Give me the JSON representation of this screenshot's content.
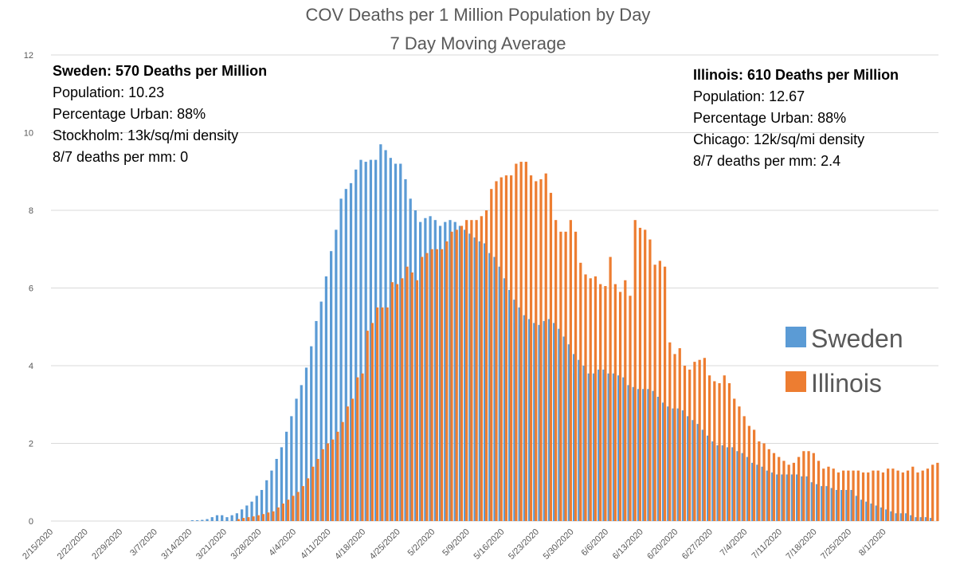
{
  "chart_data": {
    "type": "bar",
    "title": [
      "COV Deaths per 1 Million Population by Day",
      "7 Day Moving Average"
    ],
    "xlabel": "",
    "ylabel": "",
    "ylim": [
      0,
      12
    ],
    "yticks": [
      "0",
      "2",
      "4",
      "6",
      "8",
      "10",
      "12"
    ],
    "grid": true,
    "legend_position": "right",
    "start_date": "2/15/2020",
    "x_tick_labels": [
      "2/15/2020",
      "2/22/2020",
      "2/29/2020",
      "3/7/2020",
      "3/14/2020",
      "3/21/2020",
      "3/28/2020",
      "4/4/2020",
      "4/11/2020",
      "4/18/2020",
      "4/25/2020",
      "5/2/2020",
      "5/9/2020",
      "5/16/2020",
      "5/23/2020",
      "5/30/2020",
      "6/6/2020",
      "6/13/2020",
      "6/20/2020",
      "6/27/2020",
      "7/4/2020",
      "7/11/2020",
      "7/18/2020",
      "7/25/2020",
      "8/1/2020"
    ],
    "series": [
      {
        "name": "Sweden",
        "color": "#5b9bd5",
        "values": [
          0,
          0,
          0,
          0,
          0,
          0,
          0,
          0,
          0,
          0,
          0,
          0,
          0,
          0,
          0,
          0,
          0,
          0,
          0,
          0,
          0,
          0,
          0,
          0,
          0,
          0,
          0,
          0,
          0.02,
          0.02,
          0.03,
          0.05,
          0.1,
          0.15,
          0.15,
          0.1,
          0.15,
          0.2,
          0.3,
          0.4,
          0.5,
          0.65,
          0.8,
          1.05,
          1.3,
          1.6,
          1.9,
          2.3,
          2.7,
          3.15,
          3.5,
          3.95,
          4.5,
          5.15,
          5.65,
          6.3,
          6.95,
          7.5,
          8.3,
          8.55,
          8.7,
          9.05,
          9.3,
          9.25,
          9.3,
          9.3,
          9.7,
          9.55,
          9.35,
          9.2,
          9.2,
          8.8,
          8.3,
          8.0,
          7.7,
          7.8,
          7.85,
          7.75,
          7.6,
          7.7,
          7.75,
          7.7,
          7.6,
          7.5,
          7.4,
          7.3,
          7.2,
          7.15,
          6.9,
          6.8,
          6.55,
          6.25,
          5.95,
          5.7,
          5.5,
          5.3,
          5.2,
          5.1,
          5.05,
          5.15,
          5.2,
          5.1,
          4.95,
          4.75,
          4.55,
          4.3,
          4.15,
          4.0,
          3.8,
          3.8,
          3.9,
          3.9,
          3.8,
          3.8,
          3.75,
          3.7,
          3.5,
          3.45,
          3.4,
          3.4,
          3.4,
          3.35,
          3.2,
          3.05,
          2.95,
          2.9,
          2.9,
          2.85,
          2.7,
          2.6,
          2.5,
          2.35,
          2.2,
          2.05,
          1.95,
          1.95,
          1.9,
          1.9,
          1.8,
          1.75,
          1.65,
          1.5,
          1.45,
          1.4,
          1.3,
          1.25,
          1.2,
          1.2,
          1.2,
          1.2,
          1.2,
          1.15,
          1.15,
          1.0,
          0.95,
          0.9,
          0.9,
          0.85,
          0.8,
          0.8,
          0.8,
          0.8,
          0.65,
          0.55,
          0.5,
          0.45,
          0.4,
          0.35,
          0.3,
          0.25,
          0.2,
          0.2,
          0.2,
          0.15,
          0.1,
          0.1,
          0.1,
          0.08
        ]
      },
      {
        "name": "Illinois",
        "color": "#ed7d31",
        "values": [
          0,
          0,
          0,
          0,
          0,
          0,
          0,
          0,
          0,
          0,
          0,
          0,
          0,
          0,
          0,
          0,
          0,
          0,
          0,
          0,
          0,
          0,
          0,
          0,
          0,
          0,
          0,
          0,
          0,
          0,
          0,
          0,
          0,
          0,
          0,
          0,
          0,
          0.05,
          0.08,
          0.1,
          0.12,
          0.15,
          0.18,
          0.22,
          0.25,
          0.35,
          0.45,
          0.55,
          0.65,
          0.75,
          0.9,
          1.1,
          1.4,
          1.6,
          1.85,
          2.0,
          2.1,
          2.3,
          2.55,
          2.95,
          3.15,
          3.7,
          3.8,
          4.9,
          5.1,
          5.5,
          5.5,
          5.5,
          6.15,
          6.1,
          6.25,
          6.55,
          6.4,
          6.2,
          6.8,
          6.9,
          7.0,
          7.0,
          7.0,
          7.2,
          7.45,
          7.5,
          7.6,
          7.75,
          7.75,
          7.75,
          7.85,
          8.0,
          8.55,
          8.75,
          8.85,
          8.9,
          8.9,
          9.2,
          9.25,
          9.25,
          8.9,
          8.75,
          8.8,
          8.95,
          8.45,
          7.75,
          7.45,
          7.45,
          7.75,
          7.45,
          6.65,
          6.35,
          6.25,
          6.3,
          6.1,
          6.05,
          6.8,
          6.1,
          5.9,
          6.2,
          5.8,
          7.75,
          7.55,
          7.5,
          7.25,
          6.6,
          6.7,
          6.55,
          4.6,
          4.3,
          4.45,
          4.0,
          3.9,
          4.1,
          4.15,
          4.2,
          3.75,
          3.6,
          3.55,
          3.75,
          3.55,
          3.15,
          2.95,
          2.7,
          2.45,
          2.35,
          2.05,
          2.0,
          1.85,
          1.75,
          1.65,
          1.55,
          1.45,
          1.5,
          1.65,
          1.8,
          1.8,
          1.75,
          1.55,
          1.35,
          1.4,
          1.35,
          1.25,
          1.3,
          1.3,
          1.3,
          1.3,
          1.25,
          1.25,
          1.3,
          1.3,
          1.25,
          1.35,
          1.35,
          1.3,
          1.25,
          1.3,
          1.4,
          1.25,
          1.3,
          1.35,
          1.45,
          1.5
        ]
      }
    ]
  },
  "annotations": {
    "sweden": {
      "heading": "Sweden: 570 Deaths per Million",
      "lines": [
        "Population: 10.23",
        "Percentage Urban:  88%",
        "Stockholm:  13k/sq/mi density",
        "8/7 deaths per mm: 0"
      ]
    },
    "illinois": {
      "heading": "Illinois: 610 Deaths per Million",
      "lines": [
        "Population: 12.67",
        "Percentage Urban: 88%",
        "Chicago: 12k/sq/mi density",
        "8/7 deaths per mm: 2.4"
      ]
    }
  },
  "legend": [
    "Sweden",
    "Illinois"
  ]
}
